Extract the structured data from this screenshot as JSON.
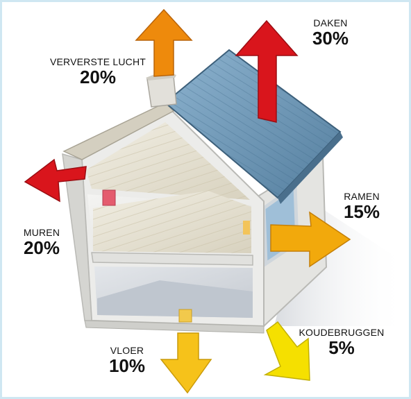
{
  "labels": {
    "daken": {
      "name": "DAKEN",
      "pct": "30%"
    },
    "lucht": {
      "name": "VERVERSTE LUCHT",
      "pct": "20%"
    },
    "ramen": {
      "name": "RAMEN",
      "pct": "15%"
    },
    "muren": {
      "name": "MUREN",
      "pct": "20%"
    },
    "vloer": {
      "name": "VLOER",
      "pct": "10%"
    },
    "koude": {
      "name": "KOUDEBRUGGEN",
      "pct": "5%"
    }
  },
  "colors": {
    "red": "#d9151c",
    "orange": "#ee8a0c",
    "amber": "#f2a90c",
    "yellow": "#f5d100",
    "roof": "#6f98b8",
    "wall": "#e9e9e6"
  }
}
